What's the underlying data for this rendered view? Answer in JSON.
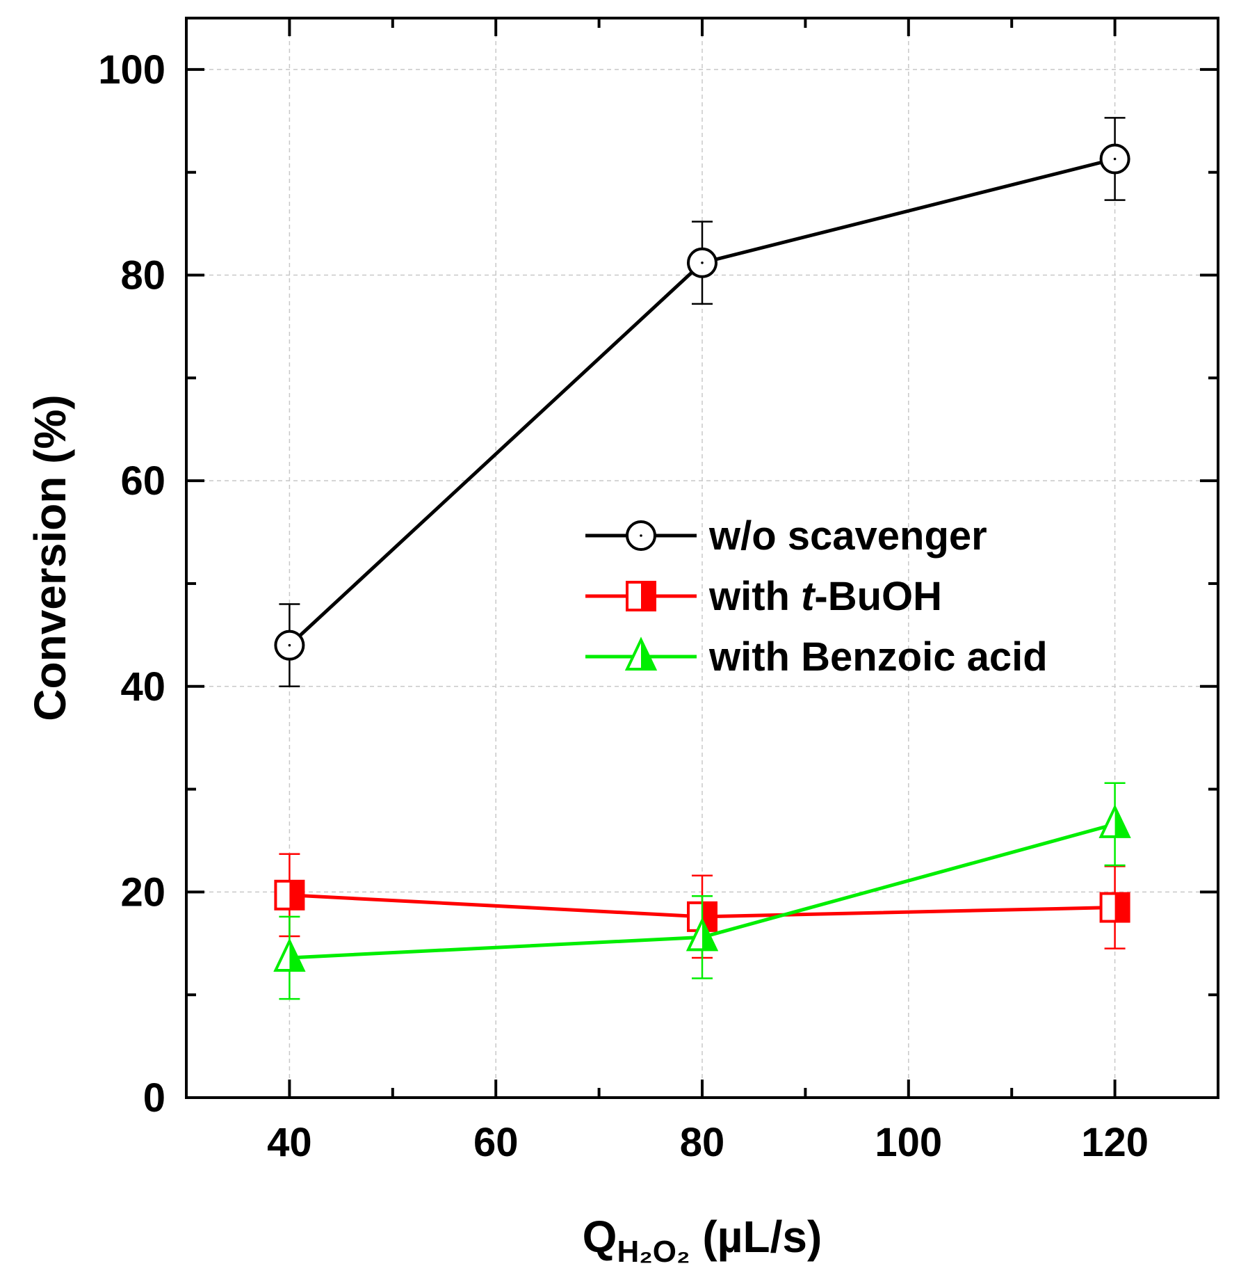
{
  "chart_data": {
    "type": "line",
    "x": [
      40,
      80,
      120
    ],
    "xlim": [
      30,
      130
    ],
    "ylim": [
      0,
      105
    ],
    "xticks": [
      40,
      60,
      80,
      100,
      120
    ],
    "yticks": [
      0,
      20,
      40,
      60,
      80,
      100
    ],
    "x_minor_ticks": [
      50,
      70,
      90,
      110
    ],
    "y_minor_ticks": [
      10,
      30,
      50,
      70,
      90
    ],
    "xlabel": {
      "main": "Q",
      "sub": "H₂O₂",
      "unit": " (µL/s)"
    },
    "ylabel": "Conversion (%)",
    "grid": true,
    "legend_position": "center-right",
    "series": [
      {
        "name": "w/o scavenger",
        "legend_label": {
          "pre": "w/o scavenger",
          "italic": "",
          "post": ""
        },
        "color": "#000000",
        "marker": "circle",
        "values": [
          44,
          81.2,
          91.3
        ],
        "errors": [
          4,
          4,
          4
        ]
      },
      {
        "name": "with t-BuOH",
        "legend_label": {
          "pre": "with ",
          "italic": "t",
          "post": "-BuOH"
        },
        "color": "#ff0000",
        "marker": "square",
        "values": [
          19.7,
          17.6,
          18.5
        ],
        "errors": [
          4,
          4,
          4
        ]
      },
      {
        "name": "with Benzoic acid",
        "legend_label": {
          "pre": "with Benzoic acid",
          "italic": "",
          "post": ""
        },
        "color": "#00ee00",
        "marker": "triangle",
        "values": [
          13.6,
          15.6,
          26.6
        ],
        "errors": [
          4,
          4,
          4
        ]
      }
    ]
  }
}
